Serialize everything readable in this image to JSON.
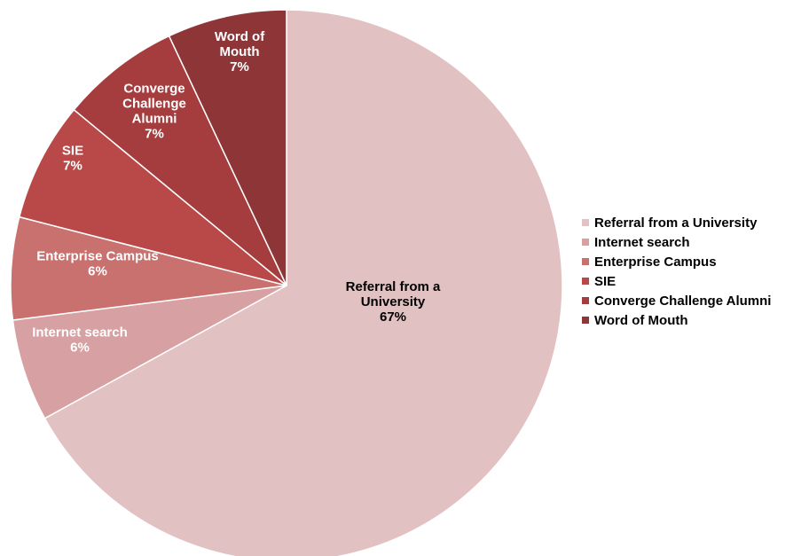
{
  "chart_data": {
    "type": "pie",
    "slices": [
      {
        "name": "Referral from a University",
        "label_lines": [
          "Referral from a",
          "University",
          "67%"
        ],
        "value": 67,
        "color": "#e2c1c2",
        "label_color": "#000000"
      },
      {
        "name": "Internet search",
        "label_lines": [
          "Internet search",
          "6%"
        ],
        "value": 6,
        "color": "#d7a0a2",
        "label_color": "#ffffff"
      },
      {
        "name": "Enterprise Campus",
        "label_lines": [
          "Enterprise Campus",
          "6%"
        ],
        "value": 6,
        "color": "#c9716f",
        "label_color": "#ffffff"
      },
      {
        "name": "SIE",
        "label_lines": [
          "SIE",
          "7%"
        ],
        "value": 7,
        "color": "#b94948",
        "label_color": "#ffffff"
      },
      {
        "name": "Converge Challenge Alumni",
        "label_lines": [
          "Converge",
          "Challenge",
          "Alumni",
          "7%"
        ],
        "value": 7,
        "color": "#a53d3f",
        "label_color": "#ffffff"
      },
      {
        "name": "Word of Mouth",
        "label_lines": [
          "Word of",
          "Mouth",
          "7%"
        ],
        "value": 7,
        "color": "#8e3537",
        "label_color": "#ffffff"
      }
    ],
    "start": "12 o'clock",
    "direction": "clockwise",
    "legend_position": "right"
  }
}
